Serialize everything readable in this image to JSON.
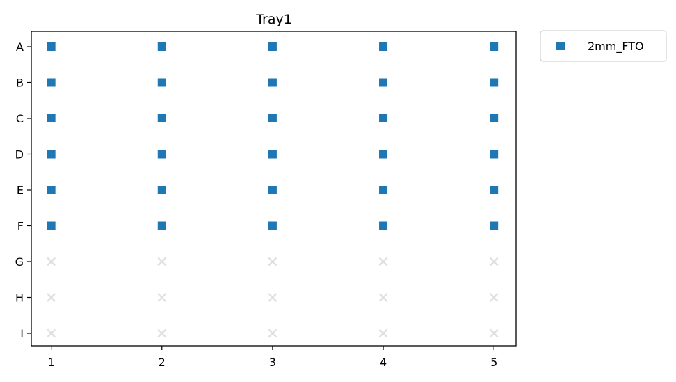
{
  "chart_data": {
    "type": "scatter",
    "title": "Tray1",
    "xlabel": "",
    "ylabel": "",
    "x_ticks": [
      "1",
      "2",
      "3",
      "4",
      "5"
    ],
    "y_ticks": [
      "A",
      "B",
      "C",
      "D",
      "E",
      "F",
      "G",
      "H",
      "I"
    ],
    "xlim": [
      0.82,
      5.2
    ],
    "grid": false,
    "legend_position": "outside-top-right",
    "series": [
      {
        "name": "2mm_FTO",
        "marker": "square",
        "color": "#1f77b4",
        "points": [
          {
            "x": 1,
            "y": "A"
          },
          {
            "x": 2,
            "y": "A"
          },
          {
            "x": 3,
            "y": "A"
          },
          {
            "x": 4,
            "y": "A"
          },
          {
            "x": 5,
            "y": "A"
          },
          {
            "x": 1,
            "y": "B"
          },
          {
            "x": 2,
            "y": "B"
          },
          {
            "x": 3,
            "y": "B"
          },
          {
            "x": 4,
            "y": "B"
          },
          {
            "x": 5,
            "y": "B"
          },
          {
            "x": 1,
            "y": "C"
          },
          {
            "x": 2,
            "y": "C"
          },
          {
            "x": 3,
            "y": "C"
          },
          {
            "x": 4,
            "y": "C"
          },
          {
            "x": 5,
            "y": "C"
          },
          {
            "x": 1,
            "y": "D"
          },
          {
            "x": 2,
            "y": "D"
          },
          {
            "x": 3,
            "y": "D"
          },
          {
            "x": 4,
            "y": "D"
          },
          {
            "x": 5,
            "y": "D"
          },
          {
            "x": 1,
            "y": "E"
          },
          {
            "x": 2,
            "y": "E"
          },
          {
            "x": 3,
            "y": "E"
          },
          {
            "x": 4,
            "y": "E"
          },
          {
            "x": 5,
            "y": "E"
          },
          {
            "x": 1,
            "y": "F"
          },
          {
            "x": 2,
            "y": "F"
          },
          {
            "x": 3,
            "y": "F"
          },
          {
            "x": 4,
            "y": "F"
          },
          {
            "x": 5,
            "y": "F"
          }
        ]
      },
      {
        "marker": "x",
        "color": "#e0e0e0",
        "points": [
          {
            "x": 1,
            "y": "G"
          },
          {
            "x": 2,
            "y": "G"
          },
          {
            "x": 3,
            "y": "G"
          },
          {
            "x": 4,
            "y": "G"
          },
          {
            "x": 5,
            "y": "G"
          },
          {
            "x": 1,
            "y": "H"
          },
          {
            "x": 2,
            "y": "H"
          },
          {
            "x": 3,
            "y": "H"
          },
          {
            "x": 4,
            "y": "H"
          },
          {
            "x": 5,
            "y": "H"
          },
          {
            "x": 1,
            "y": "I"
          },
          {
            "x": 2,
            "y": "I"
          },
          {
            "x": 3,
            "y": "I"
          },
          {
            "x": 4,
            "y": "I"
          },
          {
            "x": 5,
            "y": "I"
          }
        ]
      }
    ]
  }
}
